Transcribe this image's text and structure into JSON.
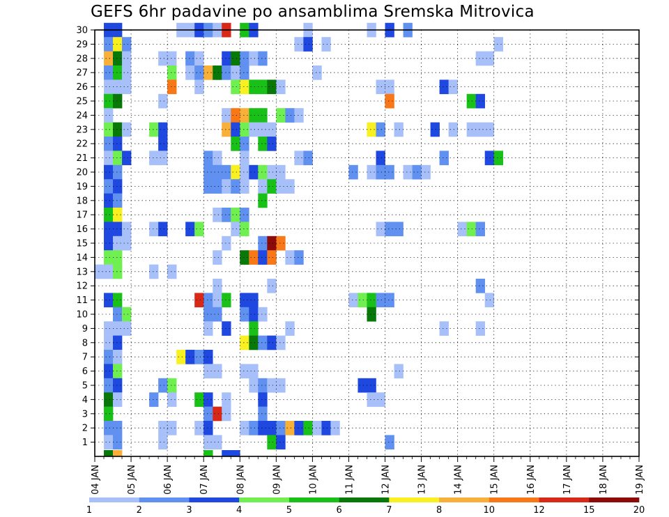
{
  "chart_data": {
    "type": "heatmap",
    "title": "GEFS 6hr padavine po ansamblima Sremska Mitrovica",
    "xlabel": "",
    "ylabel": "",
    "x_tick_labels": [
      "04 JAN",
      "05 JAN",
      "06 JAN",
      "07 JAN",
      "08 JAN",
      "09 JAN",
      "10 JAN",
      "11 JAN",
      "12 JAN",
      "13 JAN",
      "14 JAN",
      "15 JAN",
      "16 JAN",
      "17 JAN",
      "18 JAN",
      "19 JAN"
    ],
    "x_range_days": [
      0,
      15
    ],
    "y_tick_labels": [
      "1",
      "2",
      "3",
      "4",
      "5",
      "6",
      "7",
      "8",
      "9",
      "10",
      "11",
      "12",
      "13",
      "14",
      "15",
      "16",
      "17",
      "18",
      "19",
      "20",
      "21",
      "22",
      "23",
      "24",
      "25",
      "26",
      "27",
      "28",
      "29",
      "30"
    ],
    "y_range": [
      0,
      30
    ],
    "time_step_hours": 6,
    "grid": true,
    "colorbar": {
      "placement": "bottom",
      "bounds": [
        1,
        2,
        3,
        4,
        5,
        6,
        7,
        8,
        10,
        12,
        15,
        20
      ],
      "bound_labels": [
        "1",
        "2",
        "3",
        "4",
        "5",
        "6",
        "7",
        "8",
        "10",
        "12",
        "15",
        "20"
      ],
      "colors": [
        "#a8c0fa",
        "#6090f0",
        "#1f48e0",
        "#70f050",
        "#18c018",
        "#087808",
        "#f8f020",
        "#f8b038",
        "#f87818",
        "#d82818",
        "#8c0a08"
      ]
    },
    "note_values": "cells list [member(1-30, 0=bottom strip), 6-hour step index from 04 JAN 00h, color class 0-10]",
    "cells": [
      [
        30,
        1,
        2
      ],
      [
        30,
        2,
        2
      ],
      [
        30,
        9,
        0
      ],
      [
        30,
        10,
        0
      ],
      [
        30,
        11,
        2
      ],
      [
        30,
        12,
        1
      ],
      [
        30,
        13,
        0
      ],
      [
        30,
        14,
        9
      ],
      [
        30,
        16,
        4
      ],
      [
        30,
        17,
        2
      ],
      [
        30,
        23,
        0
      ],
      [
        30,
        30,
        0
      ],
      [
        30,
        32,
        2
      ],
      [
        30,
        34,
        1
      ],
      [
        29,
        1,
        1
      ],
      [
        29,
        2,
        6
      ],
      [
        29,
        3,
        1
      ],
      [
        29,
        22,
        0
      ],
      [
        29,
        23,
        2
      ],
      [
        29,
        25,
        0
      ],
      [
        29,
        44,
        0
      ],
      [
        28,
        1,
        7
      ],
      [
        28,
        2,
        5
      ],
      [
        28,
        3,
        0
      ],
      [
        28,
        7,
        0
      ],
      [
        28,
        8,
        0
      ],
      [
        28,
        10,
        1
      ],
      [
        28,
        11,
        0
      ],
      [
        28,
        14,
        2
      ],
      [
        28,
        15,
        5
      ],
      [
        28,
        16,
        1
      ],
      [
        28,
        17,
        0
      ],
      [
        28,
        18,
        1
      ],
      [
        28,
        42,
        0
      ],
      [
        28,
        43,
        0
      ],
      [
        27,
        1,
        1
      ],
      [
        27,
        2,
        4
      ],
      [
        27,
        3,
        0
      ],
      [
        27,
        8,
        3
      ],
      [
        27,
        10,
        0
      ],
      [
        27,
        11,
        1
      ],
      [
        27,
        12,
        7
      ],
      [
        27,
        13,
        5
      ],
      [
        27,
        14,
        1
      ],
      [
        27,
        15,
        0
      ],
      [
        27,
        16,
        1
      ],
      [
        27,
        24,
        0
      ],
      [
        26,
        1,
        0
      ],
      [
        26,
        2,
        0
      ],
      [
        26,
        3,
        0
      ],
      [
        26,
        8,
        8
      ],
      [
        26,
        11,
        0
      ],
      [
        26,
        15,
        3
      ],
      [
        26,
        16,
        6
      ],
      [
        26,
        17,
        4
      ],
      [
        26,
        18,
        4
      ],
      [
        26,
        19,
        5
      ],
      [
        26,
        20,
        0
      ],
      [
        26,
        31,
        0
      ],
      [
        26,
        32,
        0
      ],
      [
        26,
        38,
        2
      ],
      [
        26,
        39,
        0
      ],
      [
        25,
        1,
        4
      ],
      [
        25,
        2,
        5
      ],
      [
        25,
        7,
        0
      ],
      [
        25,
        32,
        8
      ],
      [
        25,
        41,
        4
      ],
      [
        25,
        42,
        2
      ],
      [
        24,
        1,
        0
      ],
      [
        24,
        14,
        0
      ],
      [
        24,
        15,
        8
      ],
      [
        24,
        16,
        7
      ],
      [
        24,
        17,
        4
      ],
      [
        24,
        18,
        4
      ],
      [
        24,
        20,
        3
      ],
      [
        24,
        21,
        1
      ],
      [
        24,
        22,
        0
      ],
      [
        23,
        1,
        3
      ],
      [
        23,
        2,
        5
      ],
      [
        23,
        3,
        0
      ],
      [
        23,
        6,
        3
      ],
      [
        23,
        7,
        2
      ],
      [
        23,
        14,
        7
      ],
      [
        23,
        15,
        2
      ],
      [
        23,
        16,
        3
      ],
      [
        23,
        17,
        0
      ],
      [
        23,
        18,
        0
      ],
      [
        23,
        19,
        0
      ],
      [
        23,
        30,
        6
      ],
      [
        23,
        31,
        1
      ],
      [
        23,
        33,
        0
      ],
      [
        23,
        37,
        2
      ],
      [
        23,
        39,
        0
      ],
      [
        23,
        41,
        0
      ],
      [
        23,
        42,
        0
      ],
      [
        23,
        43,
        0
      ],
      [
        22,
        1,
        1
      ],
      [
        22,
        2,
        2
      ],
      [
        22,
        7,
        2
      ],
      [
        22,
        15,
        4
      ],
      [
        22,
        16,
        1
      ],
      [
        22,
        18,
        4
      ],
      [
        22,
        19,
        2
      ],
      [
        21,
        1,
        0
      ],
      [
        21,
        2,
        3
      ],
      [
        21,
        3,
        2
      ],
      [
        21,
        6,
        0
      ],
      [
        21,
        7,
        0
      ],
      [
        21,
        12,
        1
      ],
      [
        21,
        13,
        0
      ],
      [
        21,
        16,
        0
      ],
      [
        21,
        22,
        0
      ],
      [
        21,
        23,
        1
      ],
      [
        21,
        31,
        2
      ],
      [
        21,
        38,
        1
      ],
      [
        21,
        43,
        2
      ],
      [
        21,
        44,
        4
      ],
      [
        20,
        1,
        2
      ],
      [
        20,
        2,
        1
      ],
      [
        20,
        12,
        1
      ],
      [
        20,
        13,
        1
      ],
      [
        20,
        14,
        1
      ],
      [
        20,
        15,
        6
      ],
      [
        20,
        16,
        0
      ],
      [
        20,
        17,
        2
      ],
      [
        20,
        18,
        3
      ],
      [
        20,
        19,
        0
      ],
      [
        20,
        20,
        0
      ],
      [
        20,
        28,
        1
      ],
      [
        20,
        30,
        0
      ],
      [
        20,
        31,
        1
      ],
      [
        20,
        32,
        1
      ],
      [
        20,
        34,
        0
      ],
      [
        20,
        35,
        1
      ],
      [
        20,
        36,
        0
      ],
      [
        19,
        1,
        1
      ],
      [
        19,
        2,
        2
      ],
      [
        19,
        12,
        1
      ],
      [
        19,
        13,
        1
      ],
      [
        19,
        14,
        0
      ],
      [
        19,
        15,
        1
      ],
      [
        19,
        16,
        0
      ],
      [
        19,
        18,
        0
      ],
      [
        19,
        19,
        4
      ],
      [
        19,
        20,
        0
      ],
      [
        19,
        21,
        0
      ],
      [
        18,
        1,
        2
      ],
      [
        18,
        2,
        1
      ],
      [
        18,
        18,
        4
      ],
      [
        17,
        1,
        4
      ],
      [
        17,
        2,
        6
      ],
      [
        17,
        13,
        0
      ],
      [
        17,
        14,
        1
      ],
      [
        17,
        15,
        3
      ],
      [
        17,
        16,
        1
      ],
      [
        16,
        1,
        2
      ],
      [
        16,
        2,
        2
      ],
      [
        16,
        3,
        0
      ],
      [
        16,
        6,
        0
      ],
      [
        16,
        7,
        2
      ],
      [
        16,
        10,
        2
      ],
      [
        16,
        11,
        3
      ],
      [
        16,
        15,
        0
      ],
      [
        16,
        16,
        3
      ],
      [
        16,
        31,
        0
      ],
      [
        16,
        32,
        1
      ],
      [
        16,
        33,
        1
      ],
      [
        16,
        40,
        0
      ],
      [
        16,
        41,
        3
      ],
      [
        16,
        42,
        1
      ],
      [
        15,
        1,
        2
      ],
      [
        15,
        2,
        0
      ],
      [
        15,
        3,
        0
      ],
      [
        15,
        14,
        0
      ],
      [
        15,
        18,
        1
      ],
      [
        15,
        19,
        10
      ],
      [
        15,
        20,
        8
      ],
      [
        14,
        1,
        3
      ],
      [
        14,
        2,
        3
      ],
      [
        14,
        13,
        0
      ],
      [
        14,
        16,
        5
      ],
      [
        14,
        17,
        8
      ],
      [
        14,
        18,
        2
      ],
      [
        14,
        19,
        8
      ],
      [
        14,
        21,
        0
      ],
      [
        14,
        22,
        1
      ],
      [
        13,
        0,
        0
      ],
      [
        13,
        1,
        0
      ],
      [
        13,
        2,
        3
      ],
      [
        13,
        6,
        0
      ],
      [
        13,
        8,
        0
      ],
      [
        12,
        13,
        0
      ],
      [
        12,
        19,
        0
      ],
      [
        12,
        42,
        1
      ],
      [
        11,
        1,
        2
      ],
      [
        11,
        2,
        4
      ],
      [
        11,
        11,
        9
      ],
      [
        11,
        12,
        1
      ],
      [
        11,
        13,
        0
      ],
      [
        11,
        14,
        4
      ],
      [
        11,
        16,
        2
      ],
      [
        11,
        17,
        2
      ],
      [
        11,
        28,
        0
      ],
      [
        11,
        29,
        3
      ],
      [
        11,
        30,
        4
      ],
      [
        11,
        31,
        1
      ],
      [
        11,
        32,
        1
      ],
      [
        11,
        43,
        0
      ],
      [
        10,
        2,
        1
      ],
      [
        10,
        3,
        3
      ],
      [
        10,
        12,
        1
      ],
      [
        10,
        13,
        1
      ],
      [
        10,
        16,
        1
      ],
      [
        10,
        17,
        2
      ],
      [
        10,
        18,
        0
      ],
      [
        10,
        30,
        5
      ],
      [
        9,
        1,
        0
      ],
      [
        9,
        2,
        0
      ],
      [
        9,
        3,
        0
      ],
      [
        9,
        12,
        0
      ],
      [
        9,
        14,
        2
      ],
      [
        9,
        17,
        4
      ],
      [
        9,
        21,
        0
      ],
      [
        9,
        38,
        0
      ],
      [
        9,
        42,
        0
      ],
      [
        8,
        1,
        0
      ],
      [
        8,
        2,
        2
      ],
      [
        8,
        16,
        6
      ],
      [
        8,
        17,
        5
      ],
      [
        8,
        18,
        1
      ],
      [
        8,
        19,
        2
      ],
      [
        8,
        20,
        0
      ],
      [
        7,
        1,
        1
      ],
      [
        7,
        2,
        0
      ],
      [
        7,
        9,
        6
      ],
      [
        7,
        10,
        2
      ],
      [
        7,
        11,
        1
      ],
      [
        7,
        12,
        2
      ],
      [
        6,
        1,
        2
      ],
      [
        6,
        2,
        3
      ],
      [
        6,
        12,
        0
      ],
      [
        6,
        13,
        0
      ],
      [
        6,
        16,
        0
      ],
      [
        6,
        17,
        0
      ],
      [
        6,
        33,
        0
      ],
      [
        5,
        1,
        1
      ],
      [
        5,
        2,
        2
      ],
      [
        5,
        7,
        1
      ],
      [
        5,
        8,
        3
      ],
      [
        5,
        17,
        0
      ],
      [
        5,
        18,
        1
      ],
      [
        5,
        19,
        0
      ],
      [
        5,
        20,
        0
      ],
      [
        5,
        29,
        2
      ],
      [
        5,
        30,
        2
      ],
      [
        4,
        1,
        5
      ],
      [
        4,
        2,
        0
      ],
      [
        4,
        6,
        1
      ],
      [
        4,
        8,
        0
      ],
      [
        4,
        11,
        4
      ],
      [
        4,
        12,
        2
      ],
      [
        4,
        14,
        0
      ],
      [
        4,
        18,
        2
      ],
      [
        4,
        30,
        0
      ],
      [
        4,
        31,
        0
      ],
      [
        3,
        1,
        4
      ],
      [
        3,
        12,
        1
      ],
      [
        3,
        13,
        9
      ],
      [
        3,
        14,
        0
      ],
      [
        3,
        18,
        1
      ],
      [
        2,
        1,
        1
      ],
      [
        2,
        2,
        1
      ],
      [
        2,
        7,
        0
      ],
      [
        2,
        8,
        0
      ],
      [
        2,
        11,
        0
      ],
      [
        2,
        12,
        2
      ],
      [
        2,
        16,
        0
      ],
      [
        2,
        17,
        1
      ],
      [
        2,
        18,
        2
      ],
      [
        2,
        19,
        2
      ],
      [
        2,
        20,
        1
      ],
      [
        2,
        21,
        7
      ],
      [
        2,
        22,
        2
      ],
      [
        2,
        23,
        4
      ],
      [
        2,
        24,
        0
      ],
      [
        2,
        25,
        2
      ],
      [
        2,
        26,
        0
      ],
      [
        1,
        1,
        0
      ],
      [
        1,
        2,
        1
      ],
      [
        1,
        7,
        0
      ],
      [
        1,
        12,
        0
      ],
      [
        1,
        13,
        0
      ],
      [
        1,
        19,
        4
      ],
      [
        1,
        20,
        2
      ],
      [
        1,
        32,
        1
      ],
      [
        0,
        1,
        5
      ],
      [
        0,
        2,
        7
      ],
      [
        0,
        12,
        4
      ],
      [
        0,
        14,
        2
      ],
      [
        0,
        15,
        2
      ]
    ]
  }
}
